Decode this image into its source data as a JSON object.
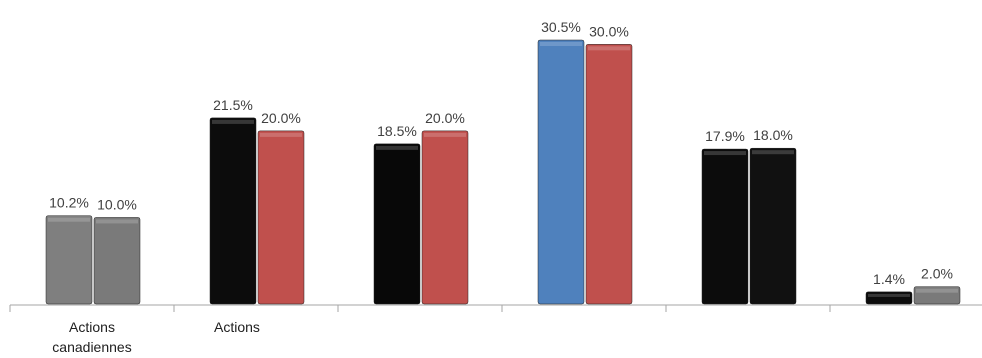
{
  "chart_data": {
    "type": "bar",
    "title": "",
    "xlabel": "",
    "ylabel": "",
    "ylim": [
      0,
      31
    ],
    "grid": false,
    "legend": "none",
    "categories": [
      [
        "Actions",
        "canadiennes"
      ],
      [
        "Actions"
      ],
      [],
      [],
      [],
      []
    ],
    "series": [
      {
        "values": [
          10.2,
          21.5,
          18.5,
          30.5,
          17.9,
          1.4
        ],
        "labels": [
          "10.2%",
          "21.5%",
          "18.5%",
          "30.5%",
          "17.9%",
          "1.4%"
        ],
        "colors": [
          "#7f7f7f",
          "#0c0c0c",
          "#080808",
          "#4f81bd",
          "#0c0c0c",
          "#0c0c0c"
        ]
      },
      {
        "values": [
          10.0,
          20.0,
          20.0,
          30.0,
          18.0,
          2.0
        ],
        "labels": [
          "10.0%",
          "20.0%",
          "20.0%",
          "30.0%",
          "18.0%",
          "2.0%"
        ],
        "colors": [
          "#7a7a7a",
          "#c0504d",
          "#c0504d",
          "#c0504d",
          "#111111",
          "#7a7a7a"
        ]
      }
    ]
  }
}
